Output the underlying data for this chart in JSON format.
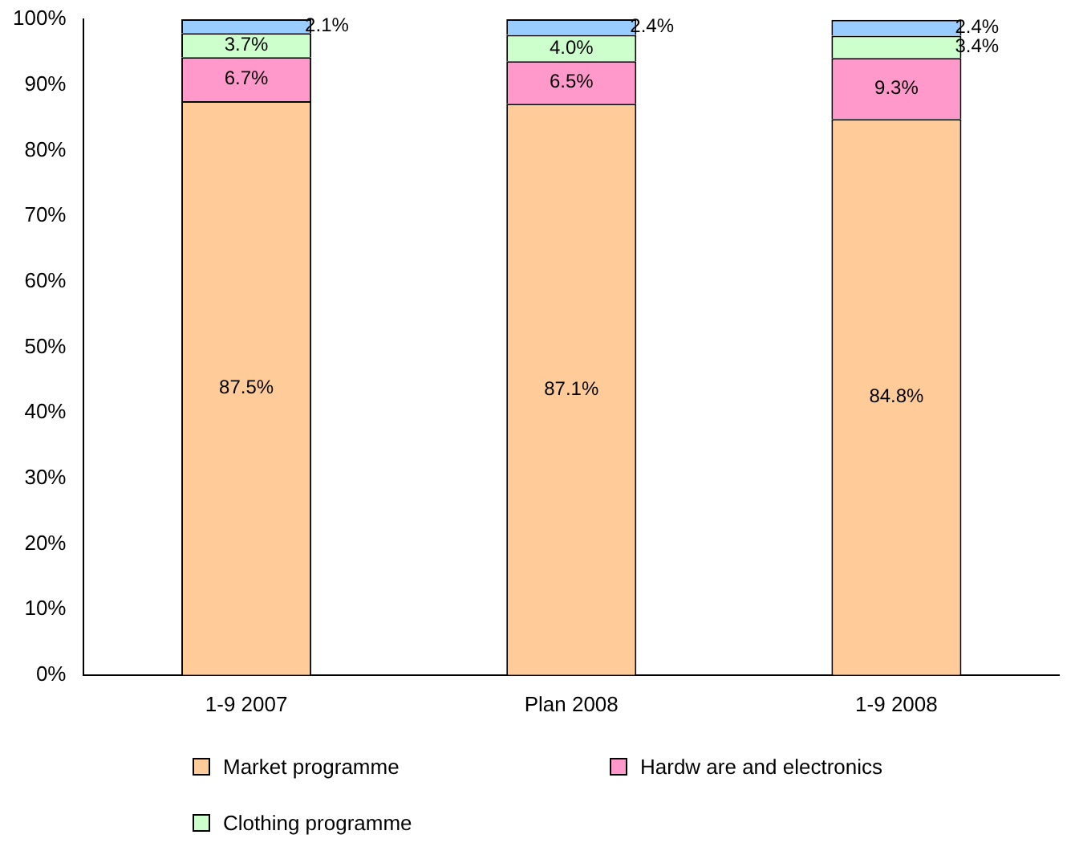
{
  "chart_data": {
    "type": "bar",
    "stacked": true,
    "categories": [
      "1-9 2007",
      "Plan 2008",
      "1-9 2008"
    ],
    "series": [
      {
        "name": "Market programme",
        "color": "#ffcc99",
        "values": [
          87.5,
          87.1,
          84.8
        ],
        "value_labels": [
          "87.5%",
          "87.1%",
          "84.8%"
        ]
      },
      {
        "name": "Hardw are and electronics",
        "color": "#ff99cc",
        "values": [
          6.7,
          6.5,
          9.3
        ],
        "value_labels": [
          "6.7%",
          "6.5%",
          "9.3%"
        ]
      },
      {
        "name": "Clothing programme",
        "color": "#ccffcc",
        "values": [
          3.7,
          4.0,
          3.4
        ],
        "value_labels": [
          "3.7%",
          "4.0%",
          "3.4%"
        ]
      },
      {
        "color": "#99ccff",
        "values": [
          2.1,
          2.4,
          2.4
        ],
        "value_labels": [
          "2.1%",
          "2.4%",
          "2.4%"
        ]
      }
    ],
    "ylim": [
      0,
      100
    ],
    "yticks": [
      {
        "value": 0,
        "label": "0%"
      },
      {
        "value": 10,
        "label": "10%"
      },
      {
        "value": 20,
        "label": "20%"
      },
      {
        "value": 30,
        "label": "30%"
      },
      {
        "value": 40,
        "label": "40%"
      },
      {
        "value": 50,
        "label": "50%"
      },
      {
        "value": 60,
        "label": "60%"
      },
      {
        "value": 70,
        "label": "70%"
      },
      {
        "value": 80,
        "label": "80%"
      },
      {
        "value": 90,
        "label": "90%"
      },
      {
        "value": 100,
        "label": "100%"
      }
    ],
    "grid": false,
    "legend": "bottom"
  }
}
